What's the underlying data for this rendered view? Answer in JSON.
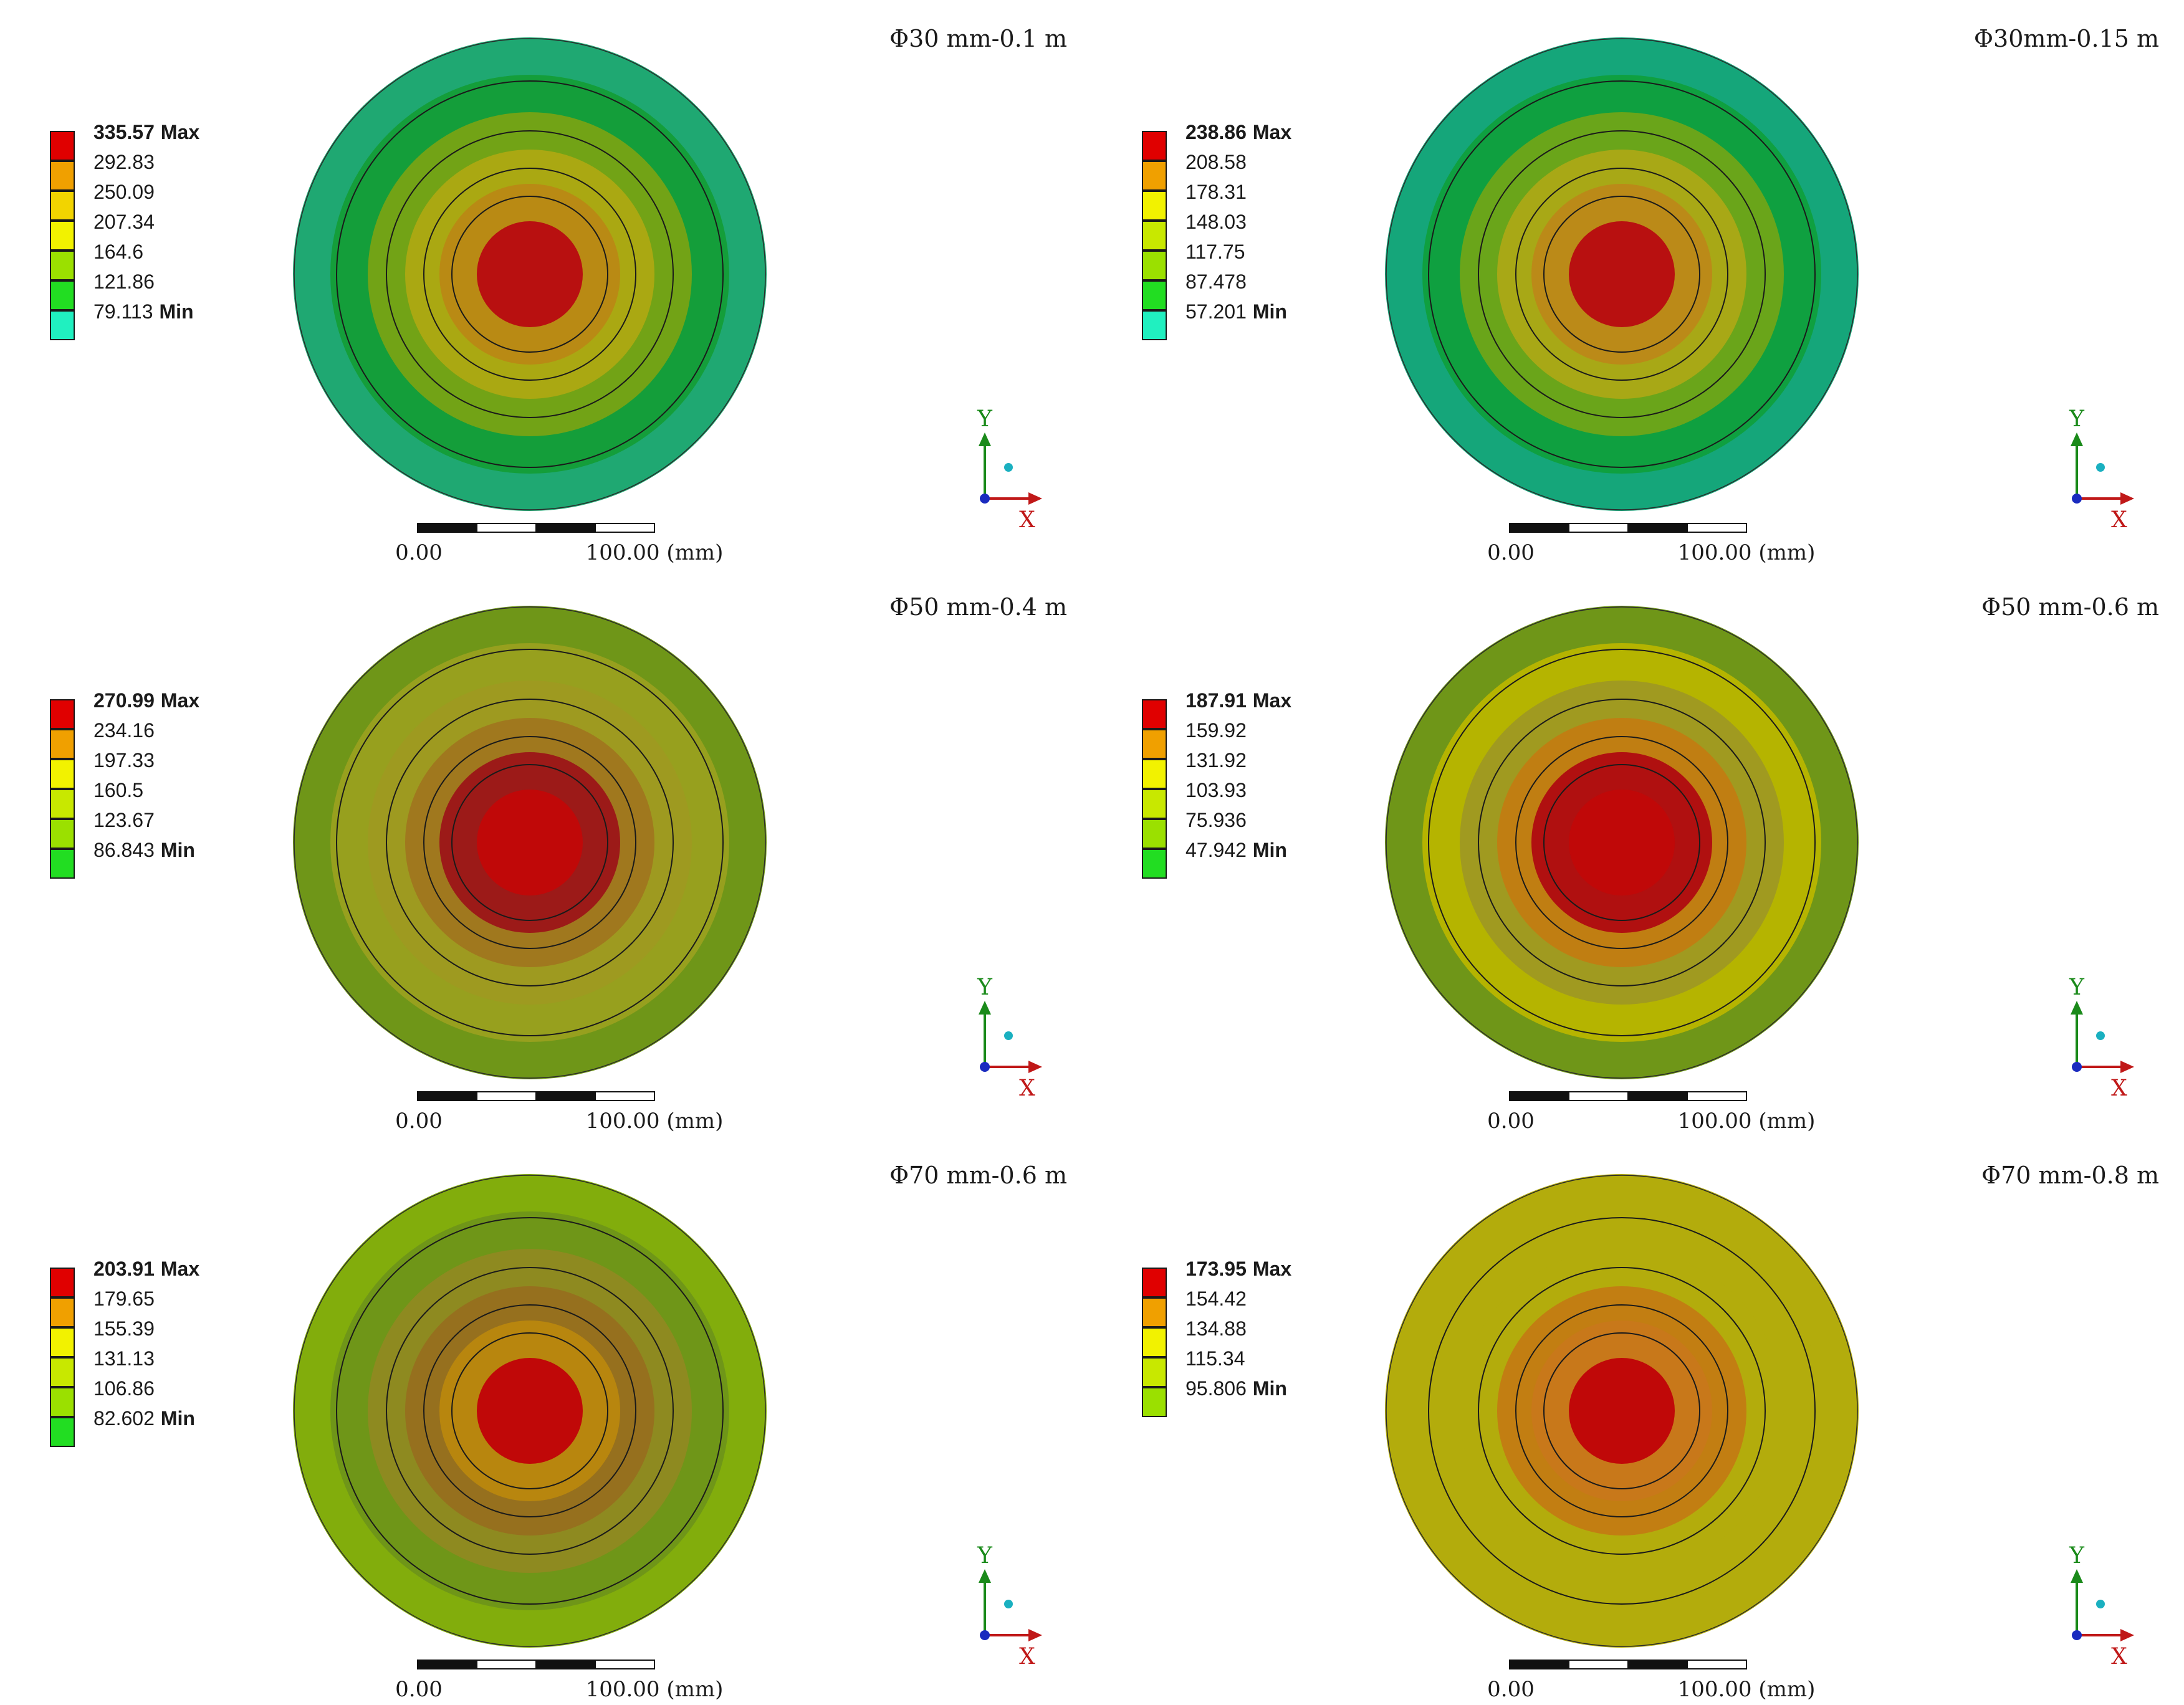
{
  "scale_bar": {
    "start_label": "0.00",
    "end_label": "100.00 (mm)"
  },
  "axis_labels": {
    "x": "X",
    "y": "Y"
  },
  "colors": {
    "red": "#cc0000",
    "orange": "#f0a000",
    "yellow": "#f2f200",
    "yellow_green": "#a6e000",
    "green": "#22dd22",
    "cyan": "#20f0c0",
    "outline": "#1a1a1a"
  },
  "panels": [
    {
      "title": "Φ30 mm-0.1 m",
      "legend": [
        {
          "value": "335.57",
          "tag": "Max",
          "color": "#e00000"
        },
        {
          "value": "292.83",
          "tag": "",
          "color": "#f0a000"
        },
        {
          "value": "250.09",
          "tag": "",
          "color": "#f2d400"
        },
        {
          "value": "207.34",
          "tag": "",
          "color": "#f2f200"
        },
        {
          "value": "164.6",
          "tag": "",
          "color": "#9be000"
        },
        {
          "value": "121.86",
          "tag": "",
          "color": "#22dd22"
        },
        {
          "value": "79.113",
          "tag": "Min",
          "color": "#20f0c0"
        }
      ],
      "rings": [
        {
          "fill": "#1fa872"
        },
        {
          "fill": "#149e3a"
        },
        {
          "fill": "#72a316"
        },
        {
          "fill": "#aaa812"
        },
        {
          "fill": "#b98a14"
        },
        {
          "fill": "#b81010"
        }
      ]
    },
    {
      "title": "Φ30mm-0.15 m",
      "legend": [
        {
          "value": "238.86",
          "tag": "Max",
          "color": "#e00000"
        },
        {
          "value": "208.58",
          "tag": "",
          "color": "#f0a000"
        },
        {
          "value": "178.31",
          "tag": "",
          "color": "#f2f200"
        },
        {
          "value": "148.03",
          "tag": "",
          "color": "#c8e800"
        },
        {
          "value": "117.75",
          "tag": "",
          "color": "#9be000"
        },
        {
          "value": "87.478",
          "tag": "",
          "color": "#22dd22"
        },
        {
          "value": "57.201",
          "tag": "Min",
          "color": "#20f0c0"
        }
      ],
      "rings": [
        {
          "fill": "#15a67a"
        },
        {
          "fill": "#0fa040"
        },
        {
          "fill": "#6aa51a"
        },
        {
          "fill": "#a8a816"
        },
        {
          "fill": "#bb8a18"
        },
        {
          "fill": "#b81010"
        }
      ]
    },
    {
      "title": "Φ50 mm-0.4 m",
      "legend": [
        {
          "value": "270.99",
          "tag": "Max",
          "color": "#e00000"
        },
        {
          "value": "234.16",
          "tag": "",
          "color": "#f0a000"
        },
        {
          "value": "197.33",
          "tag": "",
          "color": "#f2f200"
        },
        {
          "value": "160.5",
          "tag": "",
          "color": "#c8e800"
        },
        {
          "value": "123.67",
          "tag": "",
          "color": "#9be000"
        },
        {
          "value": "86.843",
          "tag": "Min",
          "color": "#22dd22"
        }
      ],
      "rings": [
        {
          "fill": "#6f9618"
        },
        {
          "fill": "#97a01e"
        },
        {
          "fill": "#9e9a20"
        },
        {
          "fill": "#a0781e"
        },
        {
          "fill": "#9c1a18"
        },
        {
          "fill": "#c00808"
        }
      ]
    },
    {
      "title": "Φ50 mm-0.6 m",
      "legend": [
        {
          "value": "187.91",
          "tag": "Max",
          "color": "#e00000"
        },
        {
          "value": "159.92",
          "tag": "",
          "color": "#f0a000"
        },
        {
          "value": "131.92",
          "tag": "",
          "color": "#f2f200"
        },
        {
          "value": "103.93",
          "tag": "",
          "color": "#c8e800"
        },
        {
          "value": "75.936",
          "tag": "",
          "color": "#9be000"
        },
        {
          "value": "47.942",
          "tag": "Min",
          "color": "#22dd22"
        }
      ],
      "rings": [
        {
          "fill": "#6f9618"
        },
        {
          "fill": "#b5b400"
        },
        {
          "fill": "#a09a20"
        },
        {
          "fill": "#c07e12"
        },
        {
          "fill": "#b01010"
        },
        {
          "fill": "#c00808"
        }
      ]
    },
    {
      "title": "Φ70 mm-0.6 m",
      "legend": [
        {
          "value": "203.91",
          "tag": "Max",
          "color": "#e00000"
        },
        {
          "value": "179.65",
          "tag": "",
          "color": "#f0a000"
        },
        {
          "value": "155.39",
          "tag": "",
          "color": "#f2f200"
        },
        {
          "value": "131.13",
          "tag": "",
          "color": "#c8e800"
        },
        {
          "value": "106.86",
          "tag": "",
          "color": "#9be000"
        },
        {
          "value": "82.602",
          "tag": "Min",
          "color": "#22dd22"
        }
      ],
      "rings": [
        {
          "fill": "#82ad0c"
        },
        {
          "fill": "#6f9618"
        },
        {
          "fill": "#8e8a20"
        },
        {
          "fill": "#96701e"
        },
        {
          "fill": "#b8860e"
        },
        {
          "fill": "#c00808"
        }
      ]
    },
    {
      "title": "Φ70 mm-0.8 m",
      "legend": [
        {
          "value": "173.95",
          "tag": "Max",
          "color": "#e00000"
        },
        {
          "value": "154.42",
          "tag": "",
          "color": "#f0a000"
        },
        {
          "value": "134.88",
          "tag": "",
          "color": "#f2f200"
        },
        {
          "value": "115.34",
          "tag": "",
          "color": "#c8e800"
        },
        {
          "value": "95.806",
          "tag": "Min",
          "color": "#9be000"
        }
      ],
      "rings": [
        {
          "fill": "#b3ac0c"
        },
        {
          "fill": "#b3ac0c"
        },
        {
          "fill": "#b3ac0c"
        },
        {
          "fill": "#c27e12"
        },
        {
          "fill": "#c8781a"
        },
        {
          "fill": "#c00808"
        }
      ]
    }
  ]
}
